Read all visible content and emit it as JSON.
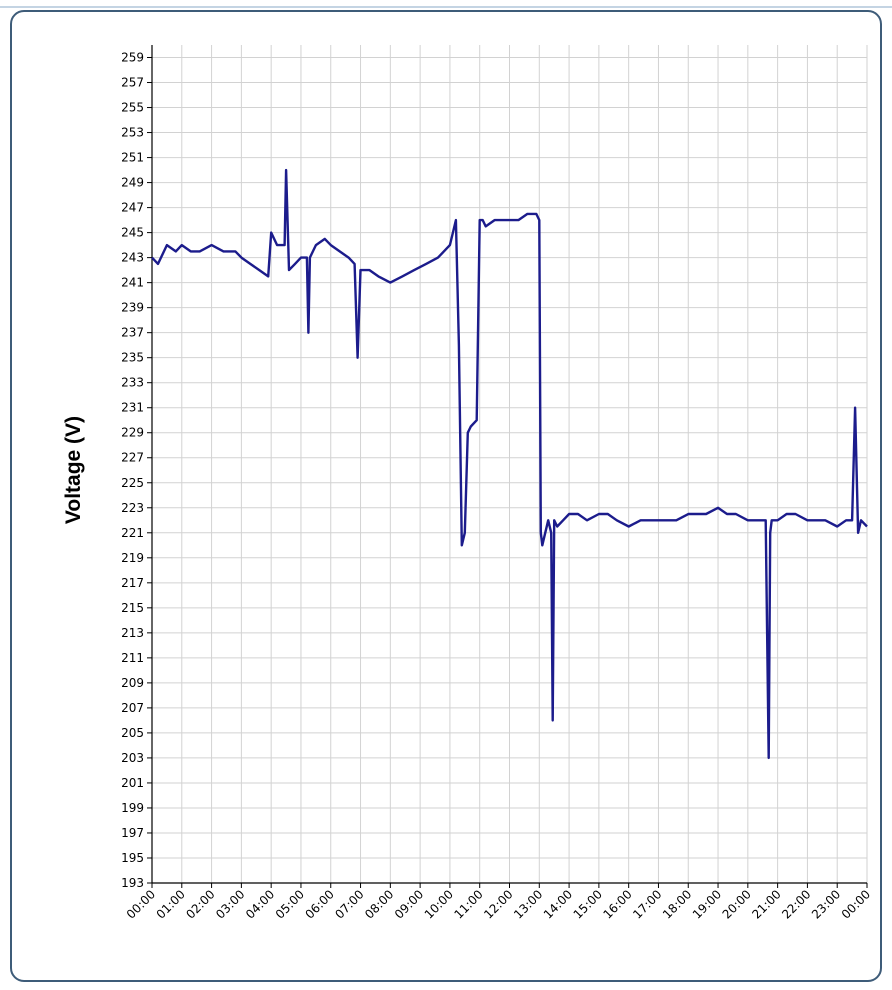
{
  "chart_data": {
    "type": "line",
    "title": "",
    "xlabel": "",
    "ylabel": "Voltage (V)",
    "ylim": [
      193,
      260
    ],
    "y_ticks": [
      193,
      195,
      197,
      199,
      201,
      203,
      205,
      207,
      209,
      211,
      213,
      215,
      217,
      219,
      221,
      223,
      225,
      227,
      229,
      231,
      233,
      235,
      237,
      239,
      241,
      243,
      245,
      247,
      249,
      251,
      253,
      255,
      257,
      259
    ],
    "x_tick_labels": [
      "00:00",
      "01:00",
      "02:00",
      "03:00",
      "04:00",
      "05:00",
      "06:00",
      "07:00",
      "08:00",
      "09:00",
      "10:00",
      "11:00",
      "12:00",
      "13:00",
      "14:00",
      "15:00",
      "16:00",
      "17:00",
      "18:00",
      "19:00",
      "20:00",
      "21:00",
      "22:00",
      "23:00",
      "00:00"
    ],
    "xlim_hours": [
      0,
      24
    ],
    "grid": true,
    "legend": "none",
    "line_color": "#1c1c8c",
    "series": [
      {
        "x": [
          0,
          0.2,
          0.5,
          0.8,
          1.0,
          1.3,
          1.6,
          2.0,
          2.4,
          2.8,
          3.0,
          3.3,
          3.6,
          3.9,
          4.0,
          4.2,
          4.45,
          4.5,
          4.6,
          4.8,
          5.0,
          5.2,
          5.25,
          5.3,
          5.5,
          5.8,
          6.0,
          6.3,
          6.6,
          6.8,
          6.9,
          7.0,
          7.3,
          7.6,
          8.0,
          8.4,
          8.8,
          9.2,
          9.6,
          10.0,
          10.2,
          10.3,
          10.4,
          10.5,
          10.6,
          10.7,
          10.9,
          11.0,
          11.1,
          11.2,
          11.5,
          11.8,
          12.0,
          12.3,
          12.6,
          12.9,
          13.0,
          13.05,
          13.1,
          13.3,
          13.4,
          13.45,
          13.5,
          13.6,
          13.8,
          14.0,
          14.3,
          14.6,
          15.0,
          15.3,
          15.6,
          16.0,
          16.4,
          16.8,
          17.2,
          17.6,
          18.0,
          18.3,
          18.6,
          19.0,
          19.3,
          19.6,
          20.0,
          20.3,
          20.6,
          20.7,
          20.75,
          20.8,
          21.0,
          21.3,
          21.6,
          22.0,
          22.3,
          22.6,
          23.0,
          23.3,
          23.5,
          23.6,
          23.7,
          23.8,
          24.0
        ],
        "y": [
          243,
          242.5,
          244,
          243.5,
          244,
          243.5,
          243.5,
          244,
          243.5,
          243.5,
          243,
          242.5,
          242,
          241.5,
          245,
          244,
          244,
          250,
          242,
          242.5,
          243,
          243,
          237,
          243,
          244,
          244.5,
          244,
          243.5,
          243,
          242.5,
          235,
          242,
          242,
          241.5,
          241,
          241.5,
          242,
          242.5,
          243,
          244,
          246,
          236,
          220,
          221,
          229,
          229.5,
          230,
          246,
          246,
          245.5,
          246,
          246,
          246,
          246,
          246.5,
          246.5,
          246,
          221,
          220,
          222,
          221,
          206,
          222,
          221.5,
          222,
          222.5,
          222.5,
          222,
          222.5,
          222.5,
          222,
          221.5,
          222,
          222,
          222,
          222,
          222.5,
          222.5,
          222.5,
          223,
          222.5,
          222.5,
          222,
          222,
          222,
          203,
          221,
          222,
          222,
          222.5,
          222.5,
          222,
          222,
          222,
          221.5,
          222,
          222,
          231,
          221,
          222,
          221.5
        ]
      }
    ]
  }
}
